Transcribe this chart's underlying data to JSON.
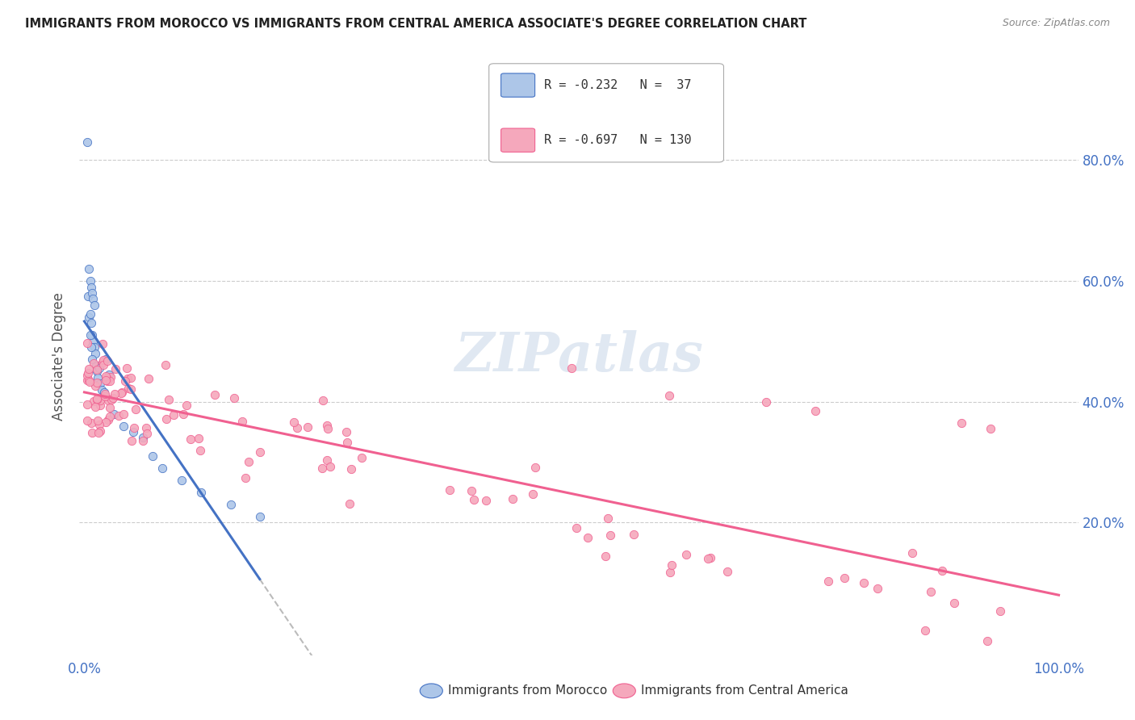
{
  "title": "IMMIGRANTS FROM MOROCCO VS IMMIGRANTS FROM CENTRAL AMERICA ASSOCIATE'S DEGREE CORRELATION CHART",
  "source": "Source: ZipAtlas.com",
  "ylabel": "Associate's Degree",
  "ytick_labels": [
    "80.0%",
    "60.0%",
    "40.0%",
    "20.0%"
  ],
  "ytick_values": [
    0.8,
    0.6,
    0.4,
    0.2
  ],
  "legend_label1": "Immigrants from Morocco",
  "legend_label2": "Immigrants from Central America",
  "R1": -0.232,
  "N1": 37,
  "R2": -0.697,
  "N2": 130,
  "color_morocco": "#adc6e8",
  "color_central": "#f5a8bc",
  "line_color_morocco": "#4472C4",
  "line_color_central": "#F06090",
  "dash_color": "#bbbbbb",
  "watermark_color": "#e0e8f2",
  "grid_color": "#cccccc",
  "title_color": "#222222",
  "source_color": "#888888",
  "tick_color": "#4472C4",
  "ylabel_color": "#555555"
}
